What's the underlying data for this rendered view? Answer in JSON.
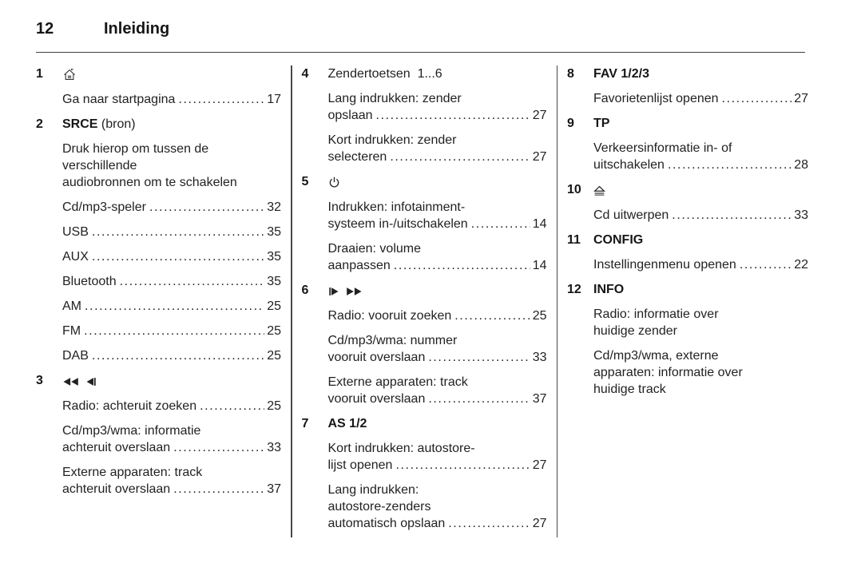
{
  "header": {
    "page_number": "12",
    "title": "Inleiding"
  },
  "icon_glyphs": {
    "home-icon": "⌂",
    "rewind-icon": "◀◀",
    "skip-back-icon": "◀▏",
    "power-icon": "⏻",
    "skip-forward-icon": "▕▶",
    "fast-forward-icon": "▶▶",
    "eject-icon": "⏏"
  },
  "columns": [
    {
      "items": [
        {
          "num": "1",
          "icons": [
            "home-icon"
          ],
          "blocks": [
            {
              "kind": "ref",
              "lines": [],
              "last": "Ga naar startpagina",
              "page": "17"
            }
          ]
        },
        {
          "num": "2",
          "head_bold": "SRCE",
          "head_plain": " (bron)",
          "blocks": [
            {
              "kind": "para",
              "lines": [
                "Druk hierop om tussen de",
                "verschillende",
                "audiobronnen om te schakelen"
              ]
            },
            {
              "kind": "ref",
              "lines": [],
              "last": "Cd/mp3-speler",
              "page": "32"
            },
            {
              "kind": "ref",
              "lines": [],
              "last": "USB",
              "page": "35"
            },
            {
              "kind": "ref",
              "lines": [],
              "last": "AUX",
              "page": "35"
            },
            {
              "kind": "ref",
              "lines": [],
              "last": "Bluetooth",
              "page": "35"
            },
            {
              "kind": "ref",
              "lines": [],
              "last": "AM",
              "page": "25"
            },
            {
              "kind": "ref",
              "lines": [],
              "last": "FM",
              "page": "25"
            },
            {
              "kind": "ref",
              "lines": [],
              "last": "DAB",
              "page": "25"
            }
          ]
        },
        {
          "num": "3",
          "icons": [
            "rewind-icon",
            "skip-back-icon"
          ],
          "blocks": [
            {
              "kind": "ref",
              "lines": [],
              "last": "Radio: achteruit zoeken",
              "page": "25"
            },
            {
              "kind": "ref",
              "lines": [
                "Cd/mp3/wma: informatie"
              ],
              "last": "achteruit overslaan",
              "page": "33"
            },
            {
              "kind": "ref",
              "lines": [
                "Externe apparaten: track"
              ],
              "last": "achteruit overslaan",
              "page": "37"
            }
          ]
        }
      ]
    },
    {
      "items": [
        {
          "num": "4",
          "head_plain": "Zendertoetsen  1...6",
          "blocks": [
            {
              "kind": "ref",
              "lines": [
                "Lang indrukken: zender"
              ],
              "last": "opslaan",
              "page": "27"
            },
            {
              "kind": "ref",
              "lines": [
                "Kort indrukken: zender"
              ],
              "last": "selecteren",
              "page": "27"
            }
          ]
        },
        {
          "num": "5",
          "icons": [
            "power-icon"
          ],
          "blocks": [
            {
              "kind": "ref",
              "lines": [
                "Indrukken: infotainment-"
              ],
              "last": "systeem in-/uitschakelen",
              "page": "14"
            },
            {
              "kind": "ref",
              "lines": [
                "Draaien: volume"
              ],
              "last": "aanpassen",
              "page": "14"
            }
          ]
        },
        {
          "num": "6",
          "icons": [
            "skip-forward-icon",
            "fast-forward-icon"
          ],
          "blocks": [
            {
              "kind": "ref",
              "lines": [],
              "last": "Radio: vooruit zoeken",
              "page": "25"
            },
            {
              "kind": "ref",
              "lines": [
                "Cd/mp3/wma: nummer"
              ],
              "last": "vooruit overslaan",
              "page": "33"
            },
            {
              "kind": "ref",
              "lines": [
                "Externe apparaten: track"
              ],
              "last": "vooruit overslaan",
              "page": "37"
            }
          ]
        },
        {
          "num": "7",
          "head_bold": "AS 1/2",
          "blocks": [
            {
              "kind": "ref",
              "lines": [
                "Kort indrukken: autostore-"
              ],
              "last": "lijst openen",
              "page": "27"
            },
            {
              "kind": "ref",
              "lines": [
                "Lang indrukken:",
                "autostore-zenders"
              ],
              "last": "automatisch opslaan",
              "page": "27"
            }
          ]
        }
      ]
    },
    {
      "items": [
        {
          "num": "8",
          "head_bold": "FAV 1/2/3",
          "blocks": [
            {
              "kind": "ref",
              "lines": [],
              "last": "Favorietenlijst openen",
              "page": "27"
            }
          ]
        },
        {
          "num": "9",
          "head_bold": "TP",
          "blocks": [
            {
              "kind": "ref",
              "lines": [
                "Verkeersinformatie in- of"
              ],
              "last": "uitschakelen",
              "page": "28"
            }
          ]
        },
        {
          "num": "10",
          "icons": [
            "eject-icon"
          ],
          "blocks": [
            {
              "kind": "ref",
              "lines": [],
              "last": "Cd uitwerpen",
              "page": "33"
            }
          ]
        },
        {
          "num": "11",
          "head_bold": "CONFIG",
          "blocks": [
            {
              "kind": "ref",
              "lines": [],
              "last": "Instellingenmenu openen",
              "page": "22"
            }
          ]
        },
        {
          "num": "12",
          "head_bold": "INFO",
          "blocks": [
            {
              "kind": "para",
              "lines": [
                "Radio: informatie over",
                "huidige zender"
              ]
            },
            {
              "kind": "para",
              "lines": [
                "Cd/mp3/wma, externe",
                "apparaten: informatie over",
                "huidige track"
              ]
            }
          ]
        }
      ]
    }
  ]
}
